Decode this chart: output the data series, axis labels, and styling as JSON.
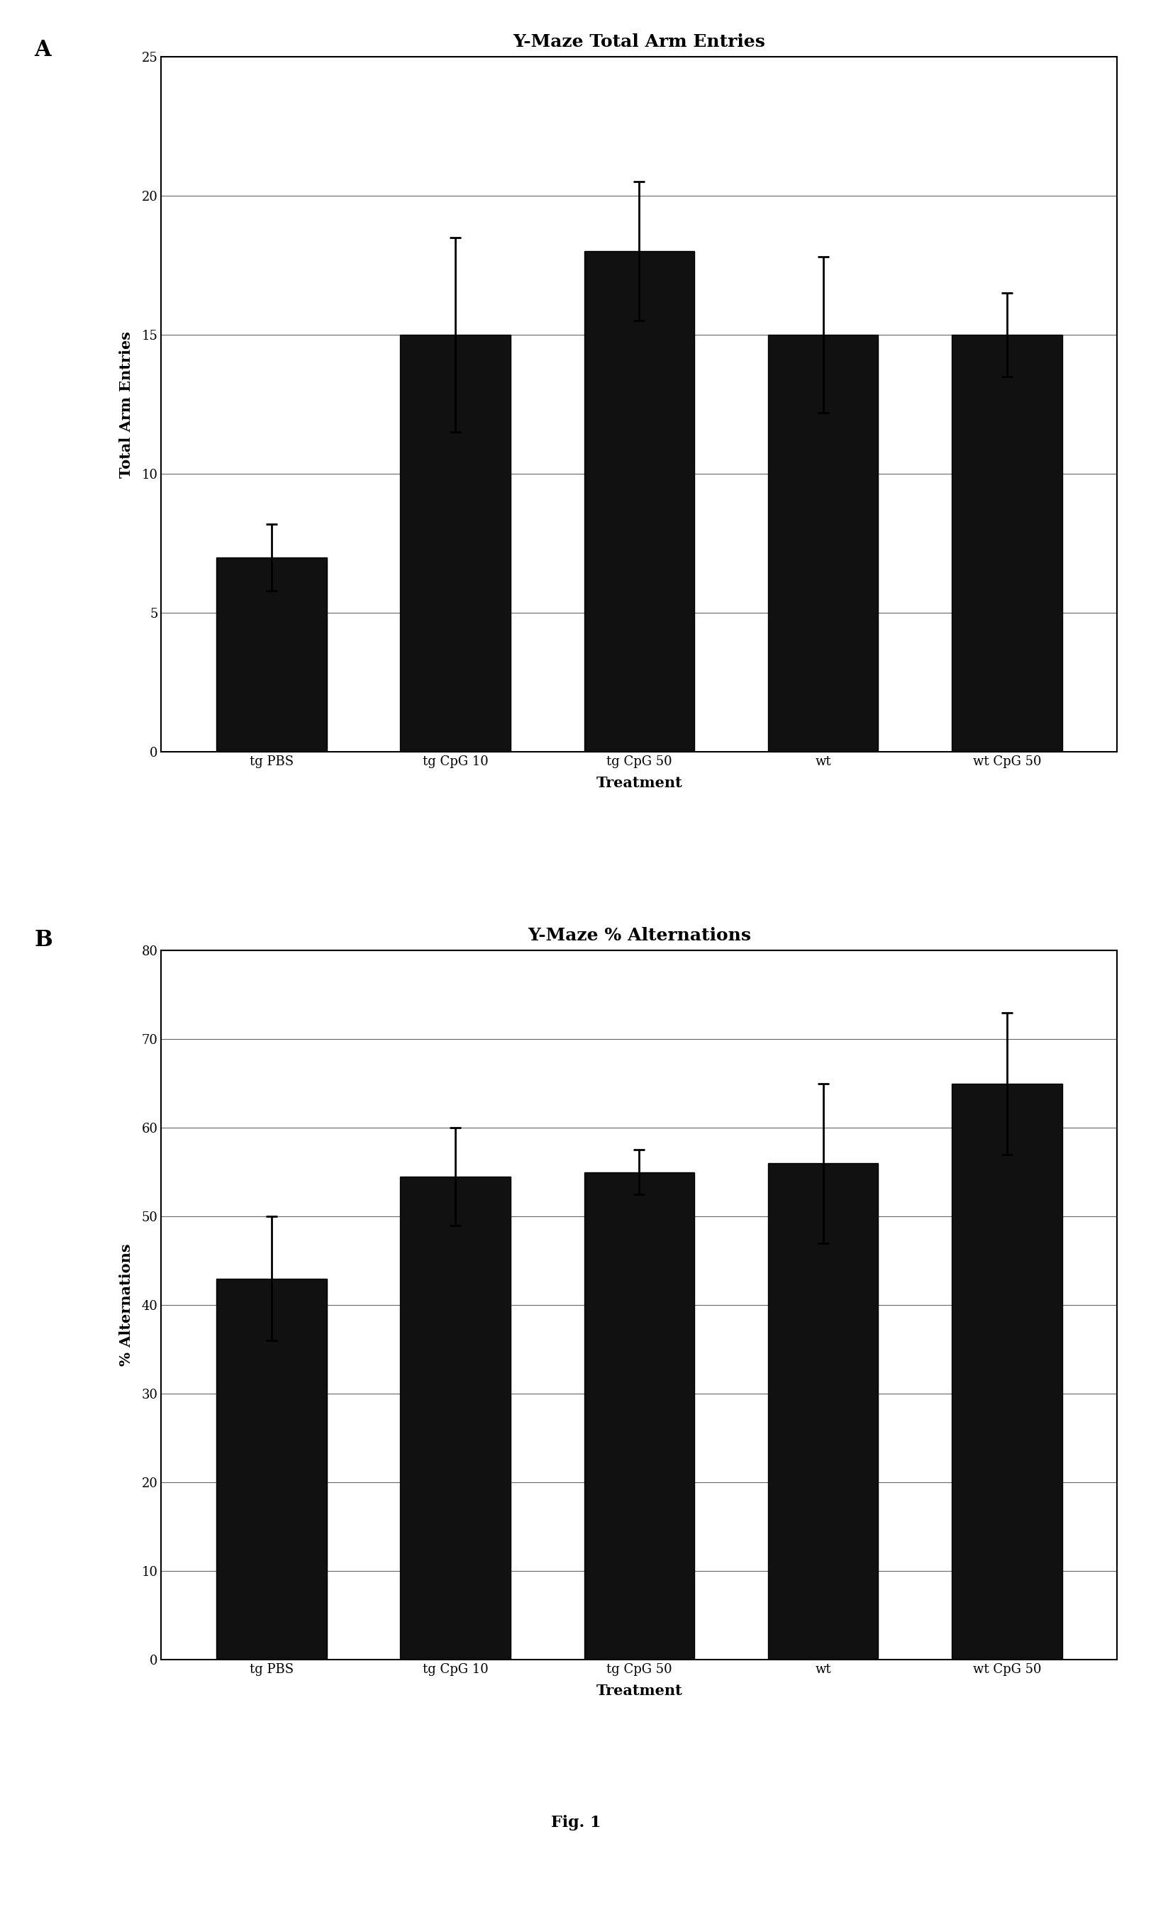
{
  "panel_A": {
    "title": "Y-Maze Total Arm Entries",
    "xlabel": "Treatment",
    "ylabel": "Total Arm Entries",
    "categories": [
      "tg PBS",
      "tg CpG 10",
      "tg CpG 50",
      "wt",
      "wt CpG 50"
    ],
    "values": [
      7.0,
      15.0,
      18.0,
      15.0,
      15.0
    ],
    "errors": [
      1.2,
      3.5,
      2.5,
      2.8,
      1.5
    ],
    "ylim": [
      0,
      25
    ],
    "yticks": [
      0,
      5,
      10,
      15,
      20,
      25
    ],
    "bar_color": "#111111",
    "bar_width": 0.6
  },
  "panel_B": {
    "title": "Y-Maze % Alternations",
    "xlabel": "Treatment",
    "ylabel": "% Alternations",
    "categories": [
      "tg PBS",
      "tg CpG 10",
      "tg CpG 50",
      "wt",
      "wt CpG 50"
    ],
    "values": [
      43.0,
      54.5,
      55.0,
      56.0,
      65.0
    ],
    "errors": [
      7.0,
      5.5,
      2.5,
      9.0,
      8.0
    ],
    "ylim": [
      0,
      80
    ],
    "yticks": [
      0,
      10,
      20,
      30,
      40,
      50,
      60,
      70,
      80
    ],
    "bar_color": "#111111",
    "bar_width": 0.6
  },
  "fig_label": "Fig. 1",
  "panel_label_A": "A",
  "panel_label_B": "B",
  "background_color": "#ffffff",
  "title_fontsize": 18,
  "axis_label_fontsize": 15,
  "tick_fontsize": 13,
  "panel_label_fontsize": 22,
  "fig_label_fontsize": 16
}
